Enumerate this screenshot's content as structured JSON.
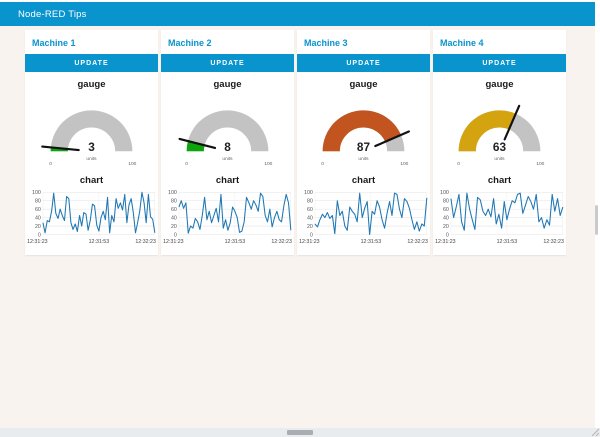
{
  "header": {
    "title": "Node-RED Tips"
  },
  "theme": {
    "accent": "#0994CE",
    "page_bg": "#F8F3EF",
    "card_bg": "#FFFFFF",
    "gauge_track": "#C3C3C3",
    "needle": "#111111",
    "chart_line": "#1F77B4"
  },
  "panels": [
    {
      "title": "Machine 1",
      "update_label": "UPDATE",
      "gauge": {
        "title": "gauge",
        "value": 3,
        "units": "units",
        "min": 0,
        "max": 100,
        "color": "#0CA60C"
      }
    },
    {
      "title": "Machine 2",
      "update_label": "UPDATE",
      "gauge": {
        "title": "gauge",
        "value": 8,
        "units": "units",
        "min": 0,
        "max": 100,
        "color": "#0CA60C"
      }
    },
    {
      "title": "Machine 3",
      "update_label": "UPDATE",
      "gauge": {
        "title": "gauge",
        "value": 87,
        "units": "units",
        "min": 0,
        "max": 100,
        "color": "#C2541F"
      }
    },
    {
      "title": "Machine 4",
      "update_label": "UPDATE",
      "gauge": {
        "title": "gauge",
        "value": 63,
        "units": "units",
        "min": 0,
        "max": 100,
        "color": "#D4A410"
      }
    }
  ],
  "chart_data": [
    {
      "type": "line",
      "title": "chart",
      "machine": "Machine 1",
      "ylim": [
        0,
        100
      ],
      "y_ticks": [
        0,
        20,
        40,
        60,
        80,
        100
      ],
      "grid": true,
      "legend": false,
      "x_tick_labels": [
        "12:31:23",
        "12:31:53",
        "12:32:23"
      ],
      "values": [
        28,
        4,
        33,
        30,
        55,
        98,
        50,
        38,
        60,
        45,
        33,
        90,
        85,
        28,
        12,
        25,
        7,
        45,
        20,
        52,
        48,
        10,
        33,
        72,
        68,
        22,
        8,
        40,
        55,
        35,
        88,
        4,
        45,
        30,
        85,
        62,
        75,
        58,
        95,
        28,
        70,
        85,
        52,
        4,
        28,
        55,
        100,
        75,
        28,
        95,
        42,
        36,
        4
      ]
    },
    {
      "type": "line",
      "title": "chart",
      "machine": "Machine 2",
      "ylim": [
        0,
        100
      ],
      "y_ticks": [
        0,
        20,
        40,
        60,
        80,
        100
      ],
      "grid": true,
      "legend": false,
      "x_tick_labels": [
        "12:31:23",
        "12:31:53",
        "12:32:23"
      ],
      "values": [
        65,
        80,
        62,
        75,
        3,
        20,
        15,
        38,
        30,
        12,
        45,
        88,
        35,
        55,
        28,
        45,
        62,
        30,
        95,
        15,
        35,
        10,
        28,
        65,
        55,
        40,
        5,
        8,
        30,
        88,
        75,
        60,
        80,
        70,
        55,
        98,
        90,
        45,
        30,
        60,
        18,
        40,
        55,
        35,
        30,
        68,
        95,
        75,
        10
      ]
    },
    {
      "type": "line",
      "title": "chart",
      "machine": "Machine 3",
      "ylim": [
        0,
        100
      ],
      "y_ticks": [
        0,
        20,
        40,
        60,
        80,
        100
      ],
      "grid": true,
      "legend": false,
      "x_tick_labels": [
        "12:31:23",
        "12:31:53",
        "12:32:23"
      ],
      "values": [
        25,
        18,
        35,
        48,
        40,
        52,
        38,
        45,
        2,
        80,
        45,
        55,
        20,
        10,
        65,
        55,
        48,
        30,
        98,
        40,
        62,
        78,
        0,
        55,
        48,
        80,
        65,
        35,
        15,
        50,
        78,
        45,
        98,
        95,
        60,
        40,
        85,
        78,
        62,
        35,
        12,
        30,
        8,
        25,
        20,
        87
      ]
    },
    {
      "type": "line",
      "title": "chart",
      "machine": "Machine 4",
      "ylim": [
        0,
        100
      ],
      "y_ticks": [
        0,
        20,
        40,
        60,
        80,
        100
      ],
      "grid": true,
      "legend": false,
      "x_tick_labels": [
        "12:31:23",
        "12:31:53",
        "12:32:23"
      ],
      "values": [
        85,
        40,
        65,
        95,
        30,
        10,
        98,
        60,
        35,
        12,
        88,
        82,
        55,
        45,
        60,
        42,
        85,
        25,
        48,
        15,
        78,
        35,
        60,
        80,
        75,
        95,
        98,
        50,
        70,
        90,
        78,
        60,
        95,
        30,
        40,
        15,
        35,
        22,
        95,
        55,
        85,
        45,
        65
      ]
    }
  ]
}
